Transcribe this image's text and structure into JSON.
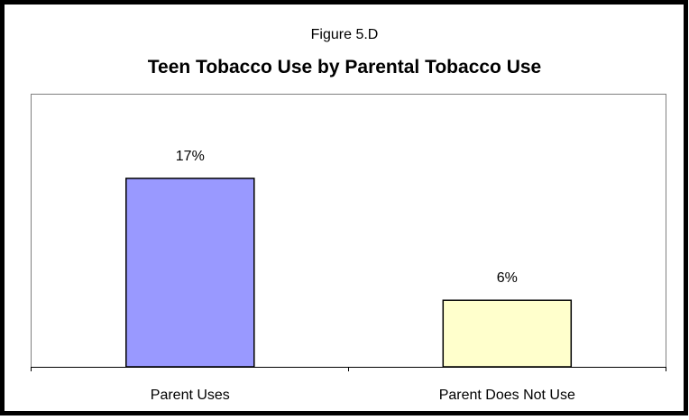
{
  "chart_data": {
    "type": "bar",
    "figure_label": "Figure 5.D",
    "title": "Teen Tobacco Use by Parental Tobacco Use",
    "xlabel": "",
    "ylabel": "",
    "categories": [
      "Parent Uses",
      "Parent Does Not Use"
    ],
    "values": [
      17,
      6
    ],
    "data_labels": [
      "17%",
      "6%"
    ],
    "colors": [
      "#9999ff",
      "#ffffcc"
    ],
    "bar_border_color": "#000000",
    "ylim": [
      0,
      20
    ],
    "grid": false,
    "legend": "none"
  }
}
